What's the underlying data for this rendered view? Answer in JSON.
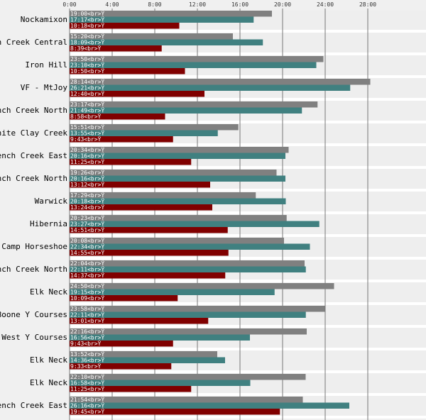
{
  "chart_data": {
    "type": "bar",
    "orientation": "horizontal",
    "title": "",
    "xlabel": "",
    "ylabel": "",
    "xlim_hours": [
      0,
      28
    ],
    "x_ticks": [
      "0:00",
      "4:00",
      "8:00",
      "12:00",
      "16:00",
      "20:00",
      "24:00",
      "28:00"
    ],
    "label_suffix": "<br>Ÿ",
    "grid": "vertical",
    "categories": [
      "Nockamixon",
      "French Creek Central",
      "Iron Hill",
      "VF - MtJoy",
      "French Creek North",
      "White Clay Creek",
      "French Creek East",
      "French Creek North",
      "Warwick",
      "Hibernia",
      "Camp Horseshoe",
      "French Creek North",
      "Elk Neck",
      "Boone Y Courses",
      "FC West Y Courses",
      "Elk Neck",
      "Elk Neck",
      "French Creek East"
    ],
    "series": [
      {
        "name": "series-1",
        "color": "#808080",
        "values": [
          "19:00",
          "15:20",
          "23:50",
          "28:14",
          "23:17",
          "15:51",
          "20:34",
          "19:26",
          "17:29",
          "20:23",
          "20:08",
          "22:04",
          "24:50",
          "23:58",
          "22:16",
          "13:52",
          "22:10",
          "21:54"
        ]
      },
      {
        "name": "series-2",
        "color": "#408080",
        "values": [
          "17:17",
          "18:09",
          "23:10",
          "26:21",
          "21:49",
          "13:55",
          "20:16",
          "20:16",
          "20:18",
          "23:27",
          "22:34",
          "22:11",
          "19:15",
          "22:11",
          "16:56",
          "14:36",
          "16:58",
          "26:16"
        ]
      },
      {
        "name": "series-3",
        "color": "#800000",
        "values": [
          "10:18",
          "8:39",
          "10:50",
          "12:40",
          "8:58",
          "9:43",
          "11:25",
          "13:12",
          "13:24",
          "14:51",
          "14:55",
          "14:37",
          "10:09",
          "13:01",
          "9:43",
          "9:33",
          "11:25",
          "19:45"
        ]
      }
    ]
  }
}
